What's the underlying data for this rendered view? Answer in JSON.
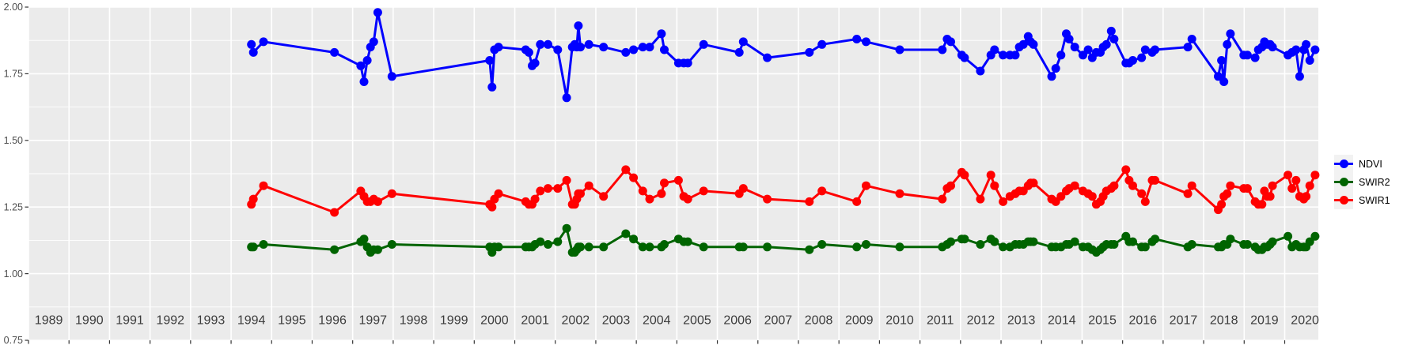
{
  "chart_data": {
    "type": "line",
    "title": "",
    "xlabel": "",
    "ylabel": "",
    "xlim": [
      1989.0,
      2020.83
    ],
    "ylim": [
      0.75,
      2.0
    ],
    "x_ticks": [
      1989,
      1990,
      1991,
      1992,
      1993,
      1994,
      1995,
      1996,
      1997,
      1998,
      1999,
      2000,
      2001,
      2002,
      2003,
      2004,
      2005,
      2006,
      2007,
      2008,
      2009,
      2010,
      2011,
      2012,
      2013,
      2014,
      2015,
      2016,
      2017,
      2018,
      2019,
      2020
    ],
    "x_tick_labels": [
      "1989",
      "1990",
      "1991",
      "1992",
      "1993",
      "1994",
      "1995",
      "1996",
      "1997",
      "1998",
      "1999",
      "2000",
      "2001",
      "2002",
      "2003",
      "2004",
      "2005",
      "2006",
      "2007",
      "2008",
      "2009",
      "2010",
      "2011",
      "2012",
      "2013",
      "2014",
      "2015",
      "2016",
      "2017",
      "2018",
      "2019",
      "2020"
    ],
    "y_ticks": [
      0.75,
      1.0,
      1.25,
      1.5,
      1.75,
      2.0
    ],
    "y_tick_labels": [
      "0.75",
      "1.00",
      "1.25",
      "1.50",
      "1.75",
      "2.00"
    ],
    "grid": "white major horizontal+vertical lines, white minor horizontal lines, on grey panel",
    "legend_position": "right-center",
    "style": {
      "panel_bg": "#EBEBEB",
      "grid_color": "#FFFFFF",
      "tick_color": "#333333",
      "y_axis_text_color": "#4D4D4D",
      "x_axis_text_color": "#3C3C3C",
      "legend_key_bg": "#F2F2F2"
    },
    "x": [
      1994.5,
      1994.55,
      1994.8,
      1996.55,
      1997.2,
      1997.28,
      1997.36,
      1997.44,
      1997.52,
      1997.62,
      1997.97,
      2000.38,
      2000.44,
      2000.5,
      2000.6,
      2001.27,
      2001.35,
      2001.43,
      2001.5,
      2001.63,
      2001.82,
      2002.06,
      2002.28,
      2002.42,
      2002.48,
      2002.53,
      2002.57,
      2002.62,
      2002.83,
      2003.19,
      2003.74,
      2003.93,
      2004.16,
      2004.33,
      2004.62,
      2004.69,
      2005.04,
      2005.17,
      2005.27,
      2005.66,
      2006.54,
      2006.64,
      2007.23,
      2008.27,
      2008.58,
      2009.44,
      2009.67,
      2010.5,
      2011.55,
      2011.67,
      2011.76,
      2012.03,
      2012.1,
      2012.49,
      2012.75,
      2012.84,
      2013.05,
      2013.22,
      2013.35,
      2013.45,
      2013.55,
      2013.67,
      2013.73,
      2013.8,
      2014.25,
      2014.35,
      2014.48,
      2014.61,
      2014.68,
      2014.82,
      2015.02,
      2015.15,
      2015.25,
      2015.35,
      2015.45,
      2015.52,
      2015.6,
      2015.72,
      2015.79,
      2016.08,
      2016.16,
      2016.25,
      2016.47,
      2016.56,
      2016.73,
      2016.8,
      2017.61,
      2017.71,
      2018.36,
      2018.44,
      2018.5,
      2018.58,
      2018.66,
      2018.99,
      2019.08,
      2019.27,
      2019.35,
      2019.44,
      2019.5,
      2019.57,
      2019.64,
      2019.7,
      2020.08,
      2020.18,
      2020.28,
      2020.37,
      2020.47,
      2020.53,
      2020.62,
      2020.75
    ],
    "series": [
      {
        "name": "NDVI",
        "color": "#0000FF",
        "values": [
          1.86,
          1.83,
          1.87,
          1.83,
          1.78,
          1.72,
          1.8,
          1.85,
          1.87,
          1.98,
          1.74,
          1.8,
          1.7,
          1.84,
          1.85,
          1.84,
          1.83,
          1.78,
          1.79,
          1.86,
          1.86,
          1.84,
          1.66,
          1.85,
          1.86,
          1.85,
          1.93,
          1.85,
          1.86,
          1.85,
          1.83,
          1.84,
          1.85,
          1.85,
          1.9,
          1.84,
          1.79,
          1.79,
          1.79,
          1.86,
          1.83,
          1.87,
          1.81,
          1.83,
          1.86,
          1.88,
          1.87,
          1.84,
          1.84,
          1.88,
          1.87,
          1.82,
          1.81,
          1.76,
          1.82,
          1.84,
          1.82,
          1.82,
          1.82,
          1.85,
          1.86,
          1.89,
          1.87,
          1.86,
          1.74,
          1.77,
          1.82,
          1.9,
          1.88,
          1.85,
          1.82,
          1.84,
          1.81,
          1.83,
          1.83,
          1.85,
          1.86,
          1.91,
          1.88,
          1.79,
          1.79,
          1.8,
          1.81,
          1.84,
          1.83,
          1.84,
          1.85,
          1.88,
          1.74,
          1.8,
          1.72,
          1.86,
          1.9,
          1.82,
          1.82,
          1.81,
          1.84,
          1.85,
          1.87,
          1.86,
          1.86,
          1.85,
          1.82,
          1.83,
          1.84,
          1.74,
          1.84,
          1.86,
          1.8,
          1.84
        ]
      },
      {
        "name": "SWIR2",
        "color": "#006400",
        "values": [
          1.1,
          1.1,
          1.11,
          1.09,
          1.12,
          1.13,
          1.1,
          1.08,
          1.09,
          1.09,
          1.11,
          1.1,
          1.08,
          1.1,
          1.1,
          1.1,
          1.1,
          1.1,
          1.11,
          1.12,
          1.11,
          1.12,
          1.17,
          1.08,
          1.08,
          1.09,
          1.1,
          1.1,
          1.1,
          1.1,
          1.15,
          1.13,
          1.1,
          1.1,
          1.1,
          1.11,
          1.13,
          1.12,
          1.12,
          1.1,
          1.1,
          1.1,
          1.1,
          1.09,
          1.11,
          1.1,
          1.11,
          1.1,
          1.1,
          1.11,
          1.12,
          1.13,
          1.13,
          1.11,
          1.13,
          1.12,
          1.1,
          1.1,
          1.11,
          1.11,
          1.11,
          1.12,
          1.12,
          1.12,
          1.1,
          1.1,
          1.1,
          1.11,
          1.11,
          1.12,
          1.1,
          1.1,
          1.09,
          1.08,
          1.09,
          1.1,
          1.11,
          1.11,
          1.11,
          1.14,
          1.12,
          1.12,
          1.1,
          1.1,
          1.12,
          1.13,
          1.1,
          1.11,
          1.1,
          1.1,
          1.11,
          1.11,
          1.13,
          1.11,
          1.11,
          1.1,
          1.09,
          1.09,
          1.1,
          1.1,
          1.11,
          1.12,
          1.14,
          1.1,
          1.11,
          1.1,
          1.1,
          1.1,
          1.12,
          1.14
        ]
      },
      {
        "name": "SWIR1",
        "color": "#FF0000",
        "values": [
          1.26,
          1.28,
          1.33,
          1.23,
          1.31,
          1.29,
          1.27,
          1.27,
          1.28,
          1.27,
          1.3,
          1.26,
          1.25,
          1.28,
          1.3,
          1.27,
          1.26,
          1.26,
          1.28,
          1.31,
          1.32,
          1.32,
          1.35,
          1.26,
          1.26,
          1.28,
          1.3,
          1.3,
          1.33,
          1.29,
          1.39,
          1.36,
          1.31,
          1.28,
          1.3,
          1.34,
          1.35,
          1.29,
          1.28,
          1.31,
          1.3,
          1.32,
          1.28,
          1.27,
          1.31,
          1.27,
          1.33,
          1.3,
          1.28,
          1.32,
          1.33,
          1.38,
          1.37,
          1.28,
          1.37,
          1.33,
          1.27,
          1.29,
          1.3,
          1.31,
          1.31,
          1.33,
          1.34,
          1.34,
          1.28,
          1.27,
          1.29,
          1.31,
          1.32,
          1.33,
          1.31,
          1.3,
          1.29,
          1.26,
          1.27,
          1.29,
          1.31,
          1.32,
          1.33,
          1.39,
          1.35,
          1.33,
          1.3,
          1.27,
          1.35,
          1.35,
          1.3,
          1.33,
          1.24,
          1.26,
          1.29,
          1.3,
          1.33,
          1.32,
          1.32,
          1.27,
          1.26,
          1.26,
          1.31,
          1.29,
          1.29,
          1.33,
          1.37,
          1.32,
          1.35,
          1.29,
          1.28,
          1.29,
          1.33,
          1.37
        ]
      }
    ]
  },
  "legend": {
    "items": [
      {
        "label": "NDVI"
      },
      {
        "label": "SWIR2"
      },
      {
        "label": "SWIR1"
      }
    ]
  }
}
